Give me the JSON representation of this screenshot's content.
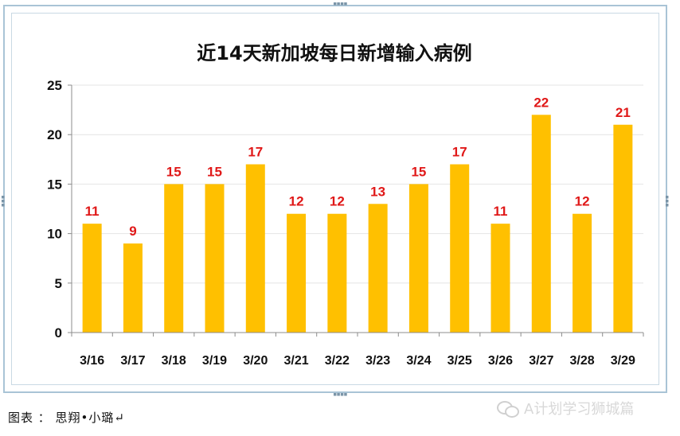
{
  "chart_data": {
    "type": "bar",
    "title": "近14天新加坡每日新增输入病例",
    "categories": [
      "3/16",
      "3/17",
      "3/18",
      "3/19",
      "3/20",
      "3/21",
      "3/22",
      "3/23",
      "3/24",
      "3/25",
      "3/26",
      "3/27",
      "3/28",
      "3/29"
    ],
    "values": [
      11,
      9,
      15,
      15,
      17,
      12,
      12,
      13,
      15,
      17,
      11,
      22,
      12,
      21
    ],
    "ylim": [
      0,
      25
    ],
    "yticks": [
      0,
      5,
      10,
      15,
      20,
      25
    ],
    "grid": true,
    "legend": "none",
    "bar_color": "#FFC000",
    "data_label_color": "#E01818"
  },
  "caption": "图表 ： 思翔•小璐↵",
  "watermark": {
    "text": "A计划学习狮城篇",
    "icon": "wechat-icon"
  }
}
